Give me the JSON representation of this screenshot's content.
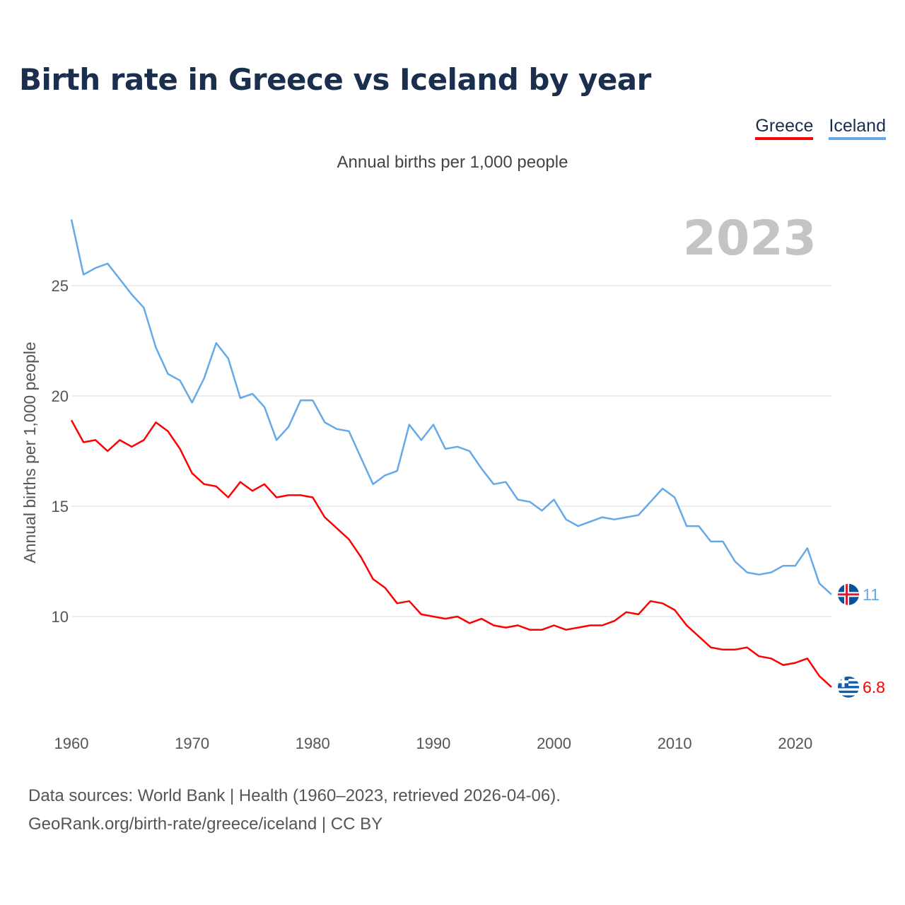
{
  "title": "Birth rate in Greece vs Iceland by year",
  "subtitle": "Annual births per 1,000 people",
  "legend": [
    {
      "name": "Greece",
      "color": "#ff0000"
    },
    {
      "name": "Iceland",
      "color": "#64a9e8"
    }
  ],
  "year_label": "2023",
  "source_line1": "Data sources: World Bank | Health (1960–2023, retrieved 2026-04-06).",
  "source_line2": "GeoRank.org/birth-rate/greece/iceland | CC BY",
  "chart_data": {
    "type": "line",
    "title": "Birth rate in Greece vs Iceland by year",
    "xlabel": "",
    "ylabel": "Annual births per 1,000 people",
    "xlim": [
      1960,
      2023
    ],
    "ylim": [
      5,
      28
    ],
    "y_ticks": [
      10,
      15,
      20,
      25
    ],
    "x_ticks": [
      1960,
      1970,
      1980,
      1990,
      2000,
      2010,
      2020
    ],
    "grid": true,
    "x": [
      1960,
      1961,
      1962,
      1963,
      1964,
      1965,
      1966,
      1967,
      1968,
      1969,
      1970,
      1971,
      1972,
      1973,
      1974,
      1975,
      1976,
      1977,
      1978,
      1979,
      1980,
      1981,
      1982,
      1983,
      1984,
      1985,
      1986,
      1987,
      1988,
      1989,
      1990,
      1991,
      1992,
      1993,
      1994,
      1995,
      1996,
      1997,
      1998,
      1999,
      2000,
      2001,
      2002,
      2003,
      2004,
      2005,
      2006,
      2007,
      2008,
      2009,
      2010,
      2011,
      2012,
      2013,
      2014,
      2015,
      2016,
      2017,
      2018,
      2019,
      2020,
      2021,
      2022,
      2023
    ],
    "series": [
      {
        "name": "Greece",
        "color": "#ff0000",
        "end_label": "6.8",
        "flag": "greece",
        "values": [
          18.9,
          17.9,
          18.0,
          17.5,
          18.0,
          17.7,
          18.0,
          18.8,
          18.4,
          17.6,
          16.5,
          16.0,
          15.9,
          15.4,
          16.1,
          15.7,
          16.0,
          15.4,
          15.5,
          15.5,
          15.4,
          14.5,
          14.0,
          13.5,
          12.7,
          11.7,
          11.3,
          10.6,
          10.7,
          10.1,
          10.0,
          9.9,
          10.0,
          9.7,
          9.9,
          9.6,
          9.5,
          9.6,
          9.4,
          9.4,
          9.6,
          9.4,
          9.5,
          9.6,
          9.6,
          9.8,
          10.2,
          10.1,
          10.7,
          10.6,
          10.3,
          9.6,
          9.1,
          8.6,
          8.5,
          8.5,
          8.6,
          8.2,
          8.1,
          7.8,
          7.9,
          8.1,
          7.3,
          6.8
        ]
      },
      {
        "name": "Iceland",
        "color": "#64a9e8",
        "end_label": "11",
        "flag": "iceland",
        "values": [
          28.0,
          25.5,
          25.8,
          26.0,
          25.3,
          24.6,
          24.0,
          22.2,
          21.0,
          20.7,
          19.7,
          20.8,
          22.4,
          21.7,
          19.9,
          20.1,
          19.5,
          18.0,
          18.6,
          19.8,
          19.8,
          18.8,
          18.5,
          18.4,
          17.2,
          16.0,
          16.4,
          16.6,
          18.7,
          18.0,
          18.7,
          17.6,
          17.7,
          17.5,
          16.7,
          16.0,
          16.1,
          15.3,
          15.2,
          14.8,
          15.3,
          14.4,
          14.1,
          14.3,
          14.5,
          14.4,
          14.5,
          14.6,
          15.2,
          15.8,
          15.4,
          14.1,
          14.1,
          13.4,
          13.4,
          12.5,
          12.0,
          11.9,
          12.0,
          12.3,
          12.3,
          13.1,
          11.5,
          11.0
        ]
      }
    ]
  }
}
